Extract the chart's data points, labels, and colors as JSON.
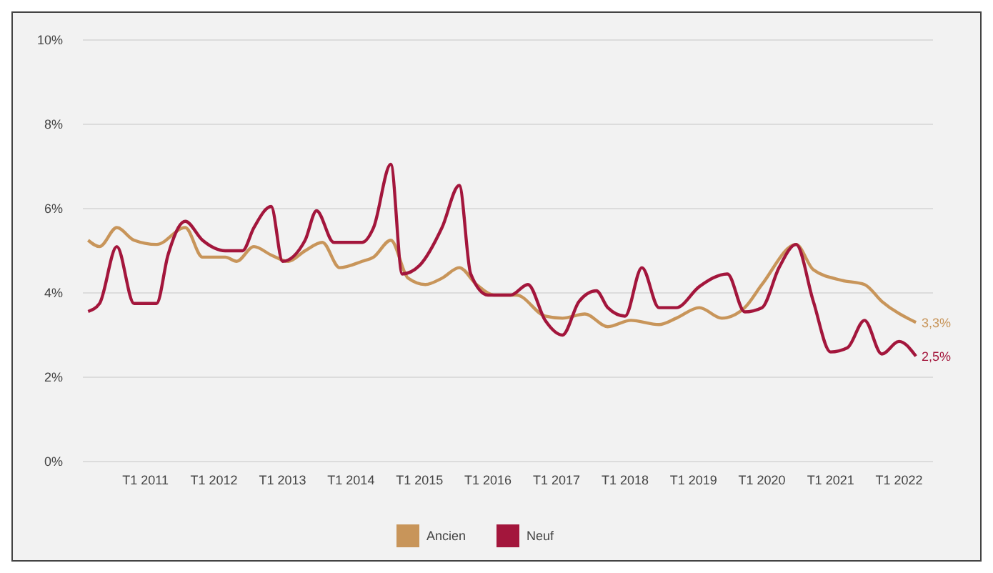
{
  "chart_data": {
    "type": "line",
    "xlim": [
      "2010-02",
      "2022-07"
    ],
    "ylim": [
      0,
      10
    ],
    "xticks": [
      {
        "value": "2011-01",
        "label": "T1 2011"
      },
      {
        "value": "2012-01",
        "label": "T1 2012"
      },
      {
        "value": "2013-01",
        "label": "T1 2013"
      },
      {
        "value": "2014-01",
        "label": "T1 2014"
      },
      {
        "value": "2015-01",
        "label": "T1 2015"
      },
      {
        "value": "2016-01",
        "label": "T1 2016"
      },
      {
        "value": "2017-01",
        "label": "T1 2017"
      },
      {
        "value": "2018-01",
        "label": "T1 2018"
      },
      {
        "value": "2019-01",
        "label": "T1 2019"
      },
      {
        "value": "2020-01",
        "label": "T1 2020"
      },
      {
        "value": "2021-01",
        "label": "T1 2021"
      },
      {
        "value": "2022-01",
        "label": "T1 2022"
      }
    ],
    "yticks": [
      {
        "value": 0,
        "label": "0%"
      },
      {
        "value": 2,
        "label": "2%"
      },
      {
        "value": 4,
        "label": "4%"
      },
      {
        "value": 6,
        "label": "6%"
      },
      {
        "value": 8,
        "label": "8%"
      },
      {
        "value": 10,
        "label": "10%"
      }
    ],
    "grid": "y",
    "legend": "bottom",
    "marker": "none",
    "line_style": "solid",
    "series": [
      {
        "name": "Ancien",
        "color": "#c8955a",
        "x": [
          "2010-03",
          "2010-05",
          "2010-08",
          "2010-11",
          "2011-03",
          "2011-08",
          "2011-11",
          "2012-03",
          "2012-05",
          "2012-08",
          "2012-11",
          "2013-02",
          "2013-05",
          "2013-08",
          "2013-11",
          "2014-03",
          "2014-05",
          "2014-08",
          "2014-11",
          "2015-02",
          "2015-05",
          "2015-08",
          "2015-11",
          "2016-02",
          "2016-06",
          "2016-11",
          "2017-02",
          "2017-06",
          "2017-10",
          "2018-02",
          "2018-07",
          "2018-10",
          "2019-02",
          "2019-06",
          "2019-10",
          "2020-01",
          "2020-07",
          "2020-10",
          "2021-03",
          "2021-07",
          "2021-10",
          "2022-04"
        ],
        "values": [
          5.25,
          5.1,
          5.55,
          5.25,
          5.15,
          5.55,
          4.85,
          4.85,
          4.75,
          5.1,
          4.9,
          4.75,
          5.0,
          5.2,
          4.6,
          4.75,
          4.85,
          5.25,
          4.35,
          4.2,
          4.35,
          4.6,
          4.2,
          3.95,
          3.95,
          3.45,
          3.4,
          3.5,
          3.2,
          3.35,
          3.25,
          3.4,
          3.65,
          3.4,
          3.65,
          4.2,
          5.15,
          4.55,
          4.3,
          4.2,
          3.8,
          3.3
        ]
      },
      {
        "name": "Neuf",
        "color": "#a3163c",
        "x": [
          "2010-03",
          "2010-05",
          "2010-08",
          "2010-11",
          "2011-03",
          "2011-05",
          "2011-08",
          "2011-11",
          "2012-03",
          "2012-06",
          "2012-08",
          "2012-11",
          "2013-01",
          "2013-05",
          "2013-07",
          "2013-10",
          "2014-03",
          "2014-05",
          "2014-08",
          "2014-10",
          "2015-01",
          "2015-05",
          "2015-08",
          "2015-10",
          "2016-01",
          "2016-05",
          "2016-08",
          "2016-11",
          "2017-02",
          "2017-05",
          "2017-08",
          "2017-10",
          "2018-01",
          "2018-04",
          "2018-07",
          "2018-10",
          "2019-02",
          "2019-07",
          "2019-10",
          "2020-01",
          "2020-04",
          "2020-07",
          "2020-10",
          "2021-01",
          "2021-04",
          "2021-07",
          "2021-10",
          "2022-01",
          "2022-04"
        ],
        "values": [
          3.56,
          3.75,
          5.1,
          3.75,
          3.75,
          4.9,
          5.7,
          5.25,
          5.0,
          5.0,
          5.55,
          6.05,
          4.75,
          5.25,
          5.95,
          5.2,
          5.2,
          5.55,
          7.05,
          4.45,
          4.65,
          5.55,
          6.55,
          4.45,
          3.95,
          3.95,
          4.2,
          3.35,
          3.0,
          3.8,
          4.05,
          3.65,
          3.45,
          4.6,
          3.65,
          3.65,
          4.15,
          4.45,
          3.55,
          3.65,
          4.6,
          5.15,
          3.8,
          2.6,
          2.7,
          3.35,
          2.55,
          2.85,
          2.5
        ]
      }
    ],
    "annotations": [
      {
        "text": "3,3%",
        "x": "2022-04",
        "y": 3.3
      },
      {
        "text": "2,5%",
        "x": "2022-04",
        "y": 2.5
      }
    ]
  }
}
